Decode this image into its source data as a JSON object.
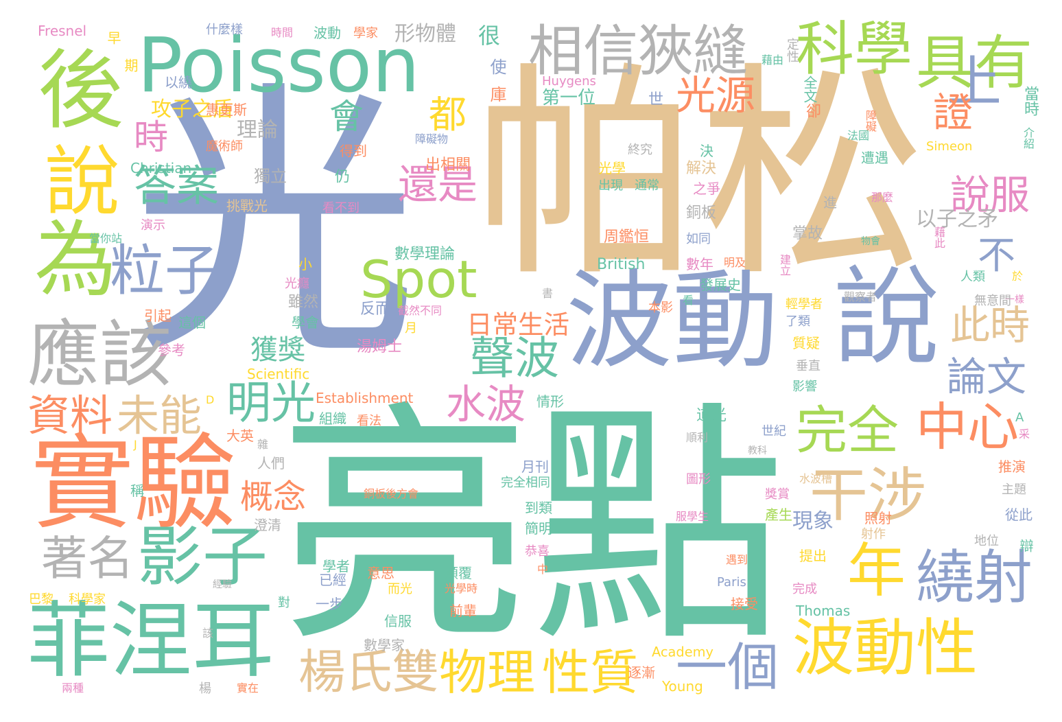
{
  "palette": {
    "blue": "#8da0cb",
    "tan": "#e5c494",
    "green": "#66c2a5",
    "orange": "#fc8d62",
    "lime": "#a6d854",
    "yellow": "#ffd92f",
    "gray": "#b3b3b3",
    "pink": "#e78ac3"
  },
  "words": [
    {
      "text": "光",
      "color": "blue"
    },
    {
      "text": "帕松",
      "color": "tan"
    },
    {
      "text": "亮點",
      "color": "green"
    },
    {
      "text": "波動",
      "color": "blue"
    },
    {
      "text": "說",
      "color": "blue"
    },
    {
      "text": "Poisson",
      "color": "green"
    },
    {
      "text": "實驗",
      "color": "orange"
    },
    {
      "text": "菲涅耳",
      "color": "green"
    },
    {
      "text": "後",
      "color": "lime"
    },
    {
      "text": "說",
      "color": "yellow"
    },
    {
      "text": "為",
      "color": "lime"
    },
    {
      "text": "應該",
      "color": "gray"
    },
    {
      "text": "相信",
      "color": "gray"
    },
    {
      "text": "狹縫",
      "color": "gray"
    },
    {
      "text": "科學",
      "color": "lime"
    },
    {
      "text": "具有",
      "color": "lime"
    },
    {
      "text": "上",
      "color": "blue"
    },
    {
      "text": "干涉",
      "color": "tan"
    },
    {
      "text": "波動性",
      "color": "yellow"
    },
    {
      "text": "年",
      "color": "yellow"
    },
    {
      "text": "繞射",
      "color": "blue"
    },
    {
      "text": "影子",
      "color": "green"
    },
    {
      "text": "一個",
      "color": "blue"
    },
    {
      "text": "Spot",
      "color": "lime"
    },
    {
      "text": "粒子",
      "color": "blue"
    },
    {
      "text": "中心",
      "color": "orange"
    },
    {
      "text": "完全",
      "color": "lime"
    },
    {
      "text": "著名",
      "color": "gray"
    },
    {
      "text": "楊氏雙",
      "color": "tan"
    },
    {
      "text": "物理",
      "color": "yellow"
    },
    {
      "text": "性質",
      "color": "yellow"
    },
    {
      "text": "聲波",
      "color": "green"
    },
    {
      "text": "明光",
      "color": "green"
    },
    {
      "text": "答案",
      "color": "green"
    },
    {
      "text": "資料",
      "color": "orange"
    },
    {
      "text": "未能",
      "color": "tan"
    },
    {
      "text": "光源",
      "color": "orange"
    },
    {
      "text": "說服",
      "color": "pink"
    },
    {
      "text": "此時",
      "color": "tan"
    },
    {
      "text": "論文",
      "color": "blue"
    },
    {
      "text": "證",
      "color": "orange"
    },
    {
      "text": "還是",
      "color": "pink"
    },
    {
      "text": "水波",
      "color": "pink"
    },
    {
      "text": "不",
      "color": "blue"
    },
    {
      "text": "時",
      "color": "pink"
    },
    {
      "text": "都",
      "color": "yellow"
    },
    {
      "text": "會",
      "color": "green"
    },
    {
      "text": "概念",
      "color": "orange"
    },
    {
      "text": "獲獎",
      "color": "green"
    },
    {
      "text": "日常生活",
      "color": "orange"
    },
    {
      "text": "以子之矛",
      "color": "gray"
    },
    {
      "text": "攻子之盾",
      "color": "yellow"
    },
    {
      "text": "形物體",
      "color": "gray"
    },
    {
      "text": "理論",
      "color": "gray"
    },
    {
      "text": "現象",
      "color": "blue"
    },
    {
      "text": "很",
      "color": "green"
    },
    {
      "text": "使",
      "color": "blue"
    },
    {
      "text": "庫",
      "color": "orange"
    },
    {
      "text": "第一位",
      "color": "green"
    },
    {
      "text": "Huygens",
      "color": "pink"
    },
    {
      "text": "世",
      "color": "blue"
    },
    {
      "text": "全文",
      "color": "green"
    },
    {
      "text": "卻",
      "color": "orange"
    },
    {
      "text": "定性",
      "color": "gray"
    },
    {
      "text": "藉由",
      "color": "green"
    },
    {
      "text": "當時",
      "color": "green"
    },
    {
      "text": "介紹",
      "color": "green"
    },
    {
      "text": "Simeon",
      "color": "yellow"
    },
    {
      "text": "障礙",
      "color": "orange"
    },
    {
      "text": "法國",
      "color": "green"
    },
    {
      "text": "遭遇",
      "color": "green"
    },
    {
      "text": "那麼",
      "color": "pink"
    },
    {
      "text": "進",
      "color": "gray"
    },
    {
      "text": "掌故",
      "color": "gray"
    },
    {
      "text": "建立",
      "color": "pink"
    },
    {
      "text": "物會",
      "color": "green"
    },
    {
      "text": "藉此",
      "color": "pink"
    },
    {
      "text": "人類",
      "color": "green"
    },
    {
      "text": "於",
      "color": "yellow"
    },
    {
      "text": "一樣",
      "color": "pink"
    },
    {
      "text": "無意間",
      "color": "gray"
    },
    {
      "text": "觀察者",
      "color": "gray"
    },
    {
      "text": "輕學者",
      "color": "yellow"
    },
    {
      "text": "了類",
      "color": "blue"
    },
    {
      "text": "質疑",
      "color": "yellow"
    },
    {
      "text": "垂直",
      "color": "gray"
    },
    {
      "text": "影響",
      "color": "green"
    },
    {
      "text": "Fresnel",
      "color": "pink"
    },
    {
      "text": "早",
      "color": "yellow"
    },
    {
      "text": "期",
      "color": "yellow"
    },
    {
      "text": "什麼樣",
      "color": "blue"
    },
    {
      "text": "時間",
      "color": "pink"
    },
    {
      "text": "波動",
      "color": "green"
    },
    {
      "text": "學家",
      "color": "orange"
    },
    {
      "text": "以繞",
      "color": "blue"
    },
    {
      "text": "惠更斯",
      "color": "orange"
    },
    {
      "text": "魔術師",
      "color": "orange"
    },
    {
      "text": "得到",
      "color": "orange"
    },
    {
      "text": "障礙物",
      "color": "blue"
    },
    {
      "text": "出相關",
      "color": "orange"
    },
    {
      "text": "終究",
      "color": "gray"
    },
    {
      "text": "光學",
      "color": "yellow"
    },
    {
      "text": "出現",
      "color": "green"
    },
    {
      "text": "通常",
      "color": "green"
    },
    {
      "text": "決",
      "color": "green"
    },
    {
      "text": "解決",
      "color": "tan"
    },
    {
      "text": "之爭",
      "color": "pink"
    },
    {
      "text": "銅板",
      "color": "gray"
    },
    {
      "text": "Christian",
      "color": "green"
    },
    {
      "text": "獨立",
      "color": "gray"
    },
    {
      "text": "仍",
      "color": "green"
    },
    {
      "text": "挑戰光",
      "color": "tan"
    },
    {
      "text": "看不到",
      "color": "pink"
    },
    {
      "text": "演示",
      "color": "pink"
    },
    {
      "text": "當你站",
      "color": "green"
    },
    {
      "text": "數學理論",
      "color": "green"
    },
    {
      "text": "周鑑恒",
      "color": "orange"
    },
    {
      "text": "如同",
      "color": "blue"
    },
    {
      "text": "明及",
      "color": "orange"
    },
    {
      "text": "數年",
      "color": "pink"
    },
    {
      "text": "British",
      "color": "green"
    },
    {
      "text": "發展史",
      "color": "green"
    },
    {
      "text": "小",
      "color": "yellow"
    },
    {
      "text": "光癮",
      "color": "pink"
    },
    {
      "text": "雖然",
      "color": "gray"
    },
    {
      "text": "反而",
      "color": "blue"
    },
    {
      "text": "截然不同",
      "color": "pink"
    },
    {
      "text": "書",
      "color": "gray"
    },
    {
      "text": "本影",
      "color": "orange"
    },
    {
      "text": "看",
      "color": "green"
    },
    {
      "text": "引起",
      "color": "orange"
    },
    {
      "text": "這個",
      "color": "green"
    },
    {
      "text": "學會",
      "color": "green"
    },
    {
      "text": "湯姆士",
      "color": "pink"
    },
    {
      "text": "月",
      "color": "yellow"
    },
    {
      "text": "參考",
      "color": "pink"
    },
    {
      "text": "Scientific",
      "color": "yellow"
    },
    {
      "text": "Establishment",
      "color": "orange"
    },
    {
      "text": "情形",
      "color": "green"
    },
    {
      "text": "組織",
      "color": "green"
    },
    {
      "text": "看法",
      "color": "orange"
    },
    {
      "text": "D",
      "color": "yellow"
    },
    {
      "text": "J",
      "color": "yellow"
    },
    {
      "text": "大英",
      "color": "orange"
    },
    {
      "text": "雜",
      "color": "gray"
    },
    {
      "text": "人們",
      "color": "gray"
    },
    {
      "text": "道光",
      "color": "green"
    },
    {
      "text": "順利",
      "color": "gray"
    },
    {
      "text": "世紀",
      "color": "blue"
    },
    {
      "text": "教科",
      "color": "gray"
    },
    {
      "text": "采",
      "color": "pink"
    },
    {
      "text": "A",
      "color": "green"
    },
    {
      "text": "稱",
      "color": "green"
    },
    {
      "text": "月刊",
      "color": "blue"
    },
    {
      "text": "銅板後方會",
      "color": "orange"
    },
    {
      "text": "完全相同",
      "color": "green"
    },
    {
      "text": "圖形",
      "color": "pink"
    },
    {
      "text": "水波槽",
      "color": "tan"
    },
    {
      "text": "推演",
      "color": "orange"
    },
    {
      "text": "主題",
      "color": "gray"
    },
    {
      "text": "到類",
      "color": "green"
    },
    {
      "text": "簡明",
      "color": "green"
    },
    {
      "text": "澄清",
      "color": "gray"
    },
    {
      "text": "服學生",
      "color": "pink"
    },
    {
      "text": "獎賞",
      "color": "pink"
    },
    {
      "text": "照射",
      "color": "orange"
    },
    {
      "text": "產生",
      "color": "lime"
    },
    {
      "text": "射作",
      "color": "tan"
    },
    {
      "text": "從此",
      "color": "blue"
    },
    {
      "text": "地位",
      "color": "gray"
    },
    {
      "text": "辯",
      "color": "green"
    },
    {
      "text": "恭喜",
      "color": "pink"
    },
    {
      "text": "中",
      "color": "orange"
    },
    {
      "text": "提出",
      "color": "yellow"
    },
    {
      "text": "遇到",
      "color": "orange"
    },
    {
      "text": "學者",
      "color": "green"
    },
    {
      "text": "已經",
      "color": "blue"
    },
    {
      "text": "意思",
      "color": "orange"
    },
    {
      "text": "顛覆",
      "color": "green"
    },
    {
      "text": "而光",
      "color": "yellow"
    },
    {
      "text": "光學時",
      "color": "orange"
    },
    {
      "text": "Paris",
      "color": "blue"
    },
    {
      "text": "巴黎",
      "color": "yellow"
    },
    {
      "text": "科學家",
      "color": "yellow"
    },
    {
      "text": "經驗",
      "color": "gray"
    },
    {
      "text": "對",
      "color": "green"
    },
    {
      "text": "一步",
      "color": "blue"
    },
    {
      "text": "信服",
      "color": "green"
    },
    {
      "text": "前輩",
      "color": "orange"
    },
    {
      "text": "接受",
      "color": "orange"
    },
    {
      "text": "完成",
      "color": "pink"
    },
    {
      "text": "Thomas",
      "color": "green"
    },
    {
      "text": "數學家",
      "color": "gray"
    },
    {
      "text": "Academy",
      "color": "yellow"
    },
    {
      "text": "逐漸",
      "color": "orange"
    },
    {
      "text": "Young",
      "color": "yellow"
    },
    {
      "text": "該",
      "color": "gray"
    },
    {
      "text": "兩種",
      "color": "pink"
    },
    {
      "text": "楊",
      "color": "gray"
    },
    {
      "text": "實在",
      "color": "orange"
    }
  ]
}
